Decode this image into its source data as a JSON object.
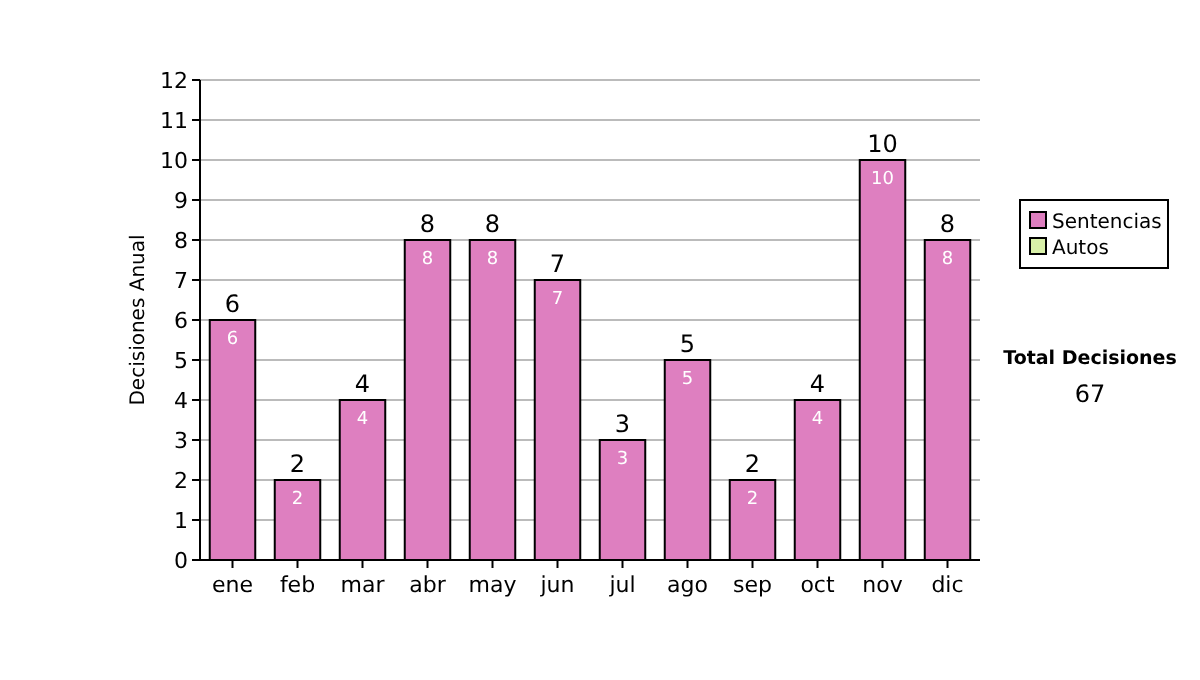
{
  "chart_data": {
    "type": "bar",
    "stacked": true,
    "ylabel": "Decisiones Anual",
    "categories": [
      "ene",
      "feb",
      "mar",
      "abr",
      "may",
      "jun",
      "jul",
      "ago",
      "sep",
      "oct",
      "nov",
      "dic"
    ],
    "series": [
      {
        "name": "Sentencias",
        "color": "#de7fc0",
        "values": [
          6,
          2,
          4,
          8,
          8,
          7,
          3,
          5,
          2,
          4,
          10,
          8
        ],
        "value_labels": [
          "6",
          "2",
          "4",
          "8",
          "8",
          "7",
          "3",
          "5",
          "2",
          "4",
          "10",
          "8"
        ]
      },
      {
        "name": "Autos",
        "color": "#d8f0a8",
        "values": [
          0,
          0,
          0,
          0,
          0,
          0,
          0,
          0,
          0,
          0,
          0,
          0
        ]
      }
    ],
    "totals": [
      "6",
      "2",
      "4",
      "8",
      "8",
      "7",
      "3",
      "5",
      "2",
      "4",
      "10",
      "8"
    ],
    "ylim": [
      0,
      12
    ],
    "yticks": [
      0,
      1,
      2,
      3,
      4,
      5,
      6,
      7,
      8,
      9,
      10,
      11,
      12
    ],
    "grid": "y",
    "legend": "right",
    "annotations": [
      "Total Decisiones",
      "67"
    ]
  }
}
